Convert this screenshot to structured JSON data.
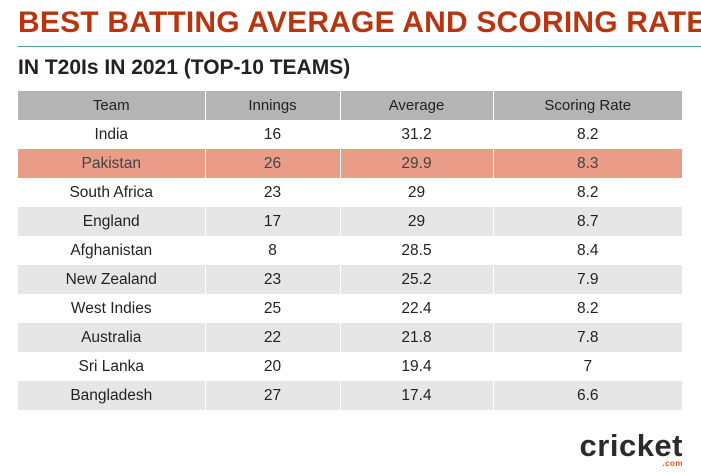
{
  "title": "BEST BATTING AVERAGE AND SCORING RATE",
  "subtitle": "IN T20Is IN 2021 (TOP-10 TEAMS)",
  "logo": {
    "text": "cricket",
    "suffix": ".com"
  },
  "colors": {
    "title": "#b8360f",
    "highlight": "#eb9c88",
    "header": "#b4b4b4",
    "rule": "#4aa86e"
  },
  "chart_data": {
    "type": "table",
    "columns": [
      "Team",
      "Innings",
      "Average",
      "Scoring Rate"
    ],
    "highlight_row": "Pakistan",
    "rows": [
      [
        "India",
        "16",
        "31.2",
        "8.2"
      ],
      [
        "Pakistan",
        "26",
        "29.9",
        "8.3"
      ],
      [
        "South Africa",
        "23",
        "29",
        "8.2"
      ],
      [
        "England",
        "17",
        "29",
        "8.7"
      ],
      [
        "Afghanistan",
        "8",
        "28.5",
        "8.4"
      ],
      [
        "New Zealand",
        "23",
        "25.2",
        "7.9"
      ],
      [
        "West Indies",
        "25",
        "22.4",
        "8.2"
      ],
      [
        "Australia",
        "22",
        "21.8",
        "7.8"
      ],
      [
        "Sri Lanka",
        "20",
        "19.4",
        "7"
      ],
      [
        "Bangladesh",
        "27",
        "17.4",
        "6.6"
      ]
    ]
  }
}
